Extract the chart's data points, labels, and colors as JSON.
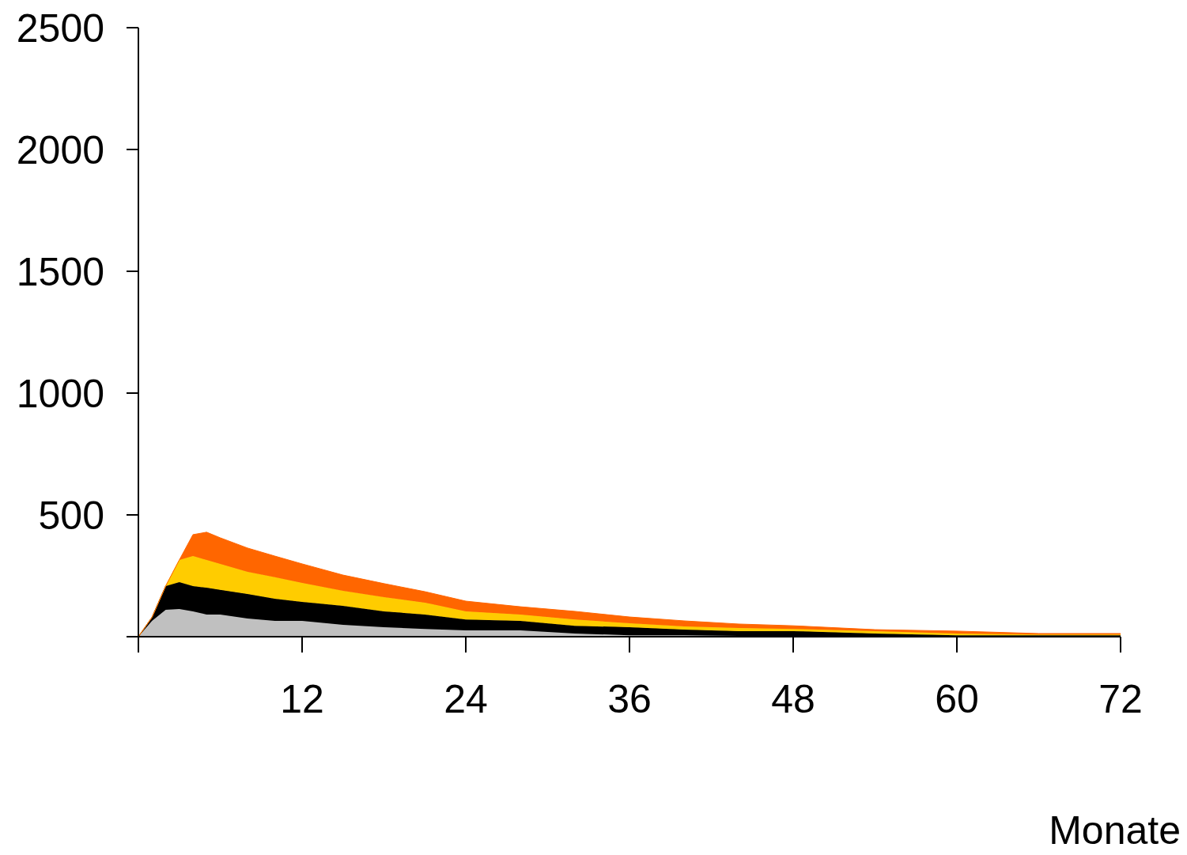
{
  "chart_data": {
    "type": "area",
    "xlabel": "Monate",
    "stacked": true,
    "grid": false,
    "legend": false,
    "x": [
      0,
      1,
      2,
      3,
      4,
      5,
      6,
      8,
      10,
      12,
      15,
      18,
      21,
      24,
      28,
      32,
      36,
      40,
      44,
      48,
      54,
      60,
      66,
      72
    ],
    "series": [
      {
        "color": "#c0c0c0",
        "values": [
          0,
          65,
          110,
          114,
          104,
          91,
          91,
          75,
          65,
          65,
          49,
          39,
          32,
          26,
          26,
          13,
          6,
          6,
          3,
          2,
          0,
          0,
          0,
          0
        ]
      },
      {
        "color": "#000000",
        "values": [
          0,
          15,
          98,
          110,
          104,
          110,
          101,
          100,
          91,
          78,
          78,
          65,
          59,
          45,
          39,
          32,
          33,
          23,
          20,
          21,
          13,
          6,
          6,
          6
        ]
      },
      {
        "color": "#ffcc00",
        "values": [
          0,
          0,
          0,
          91,
          123,
          114,
          107,
          91,
          88,
          78,
          61,
          58,
          49,
          33,
          26,
          26,
          16,
          13,
          13,
          9,
          10,
          7,
          3,
          3
        ]
      },
      {
        "color": "#ff6600",
        "values": [
          0,
          0,
          0,
          0,
          88,
          114,
          107,
          98,
          87,
          78,
          65,
          56,
          45,
          42,
          32,
          33,
          26,
          23,
          16,
          13,
          6,
          10,
          4,
          4
        ]
      }
    ],
    "xlim": [
      0,
      72
    ],
    "xticks": [
      {
        "value": 0,
        "label": null
      },
      12,
      24,
      36,
      48,
      60,
      72
    ],
    "ylim": [
      0,
      2500
    ],
    "yticks": [
      {
        "value": 0,
        "label": null
      },
      500,
      1000,
      1500,
      2000,
      2500
    ]
  }
}
